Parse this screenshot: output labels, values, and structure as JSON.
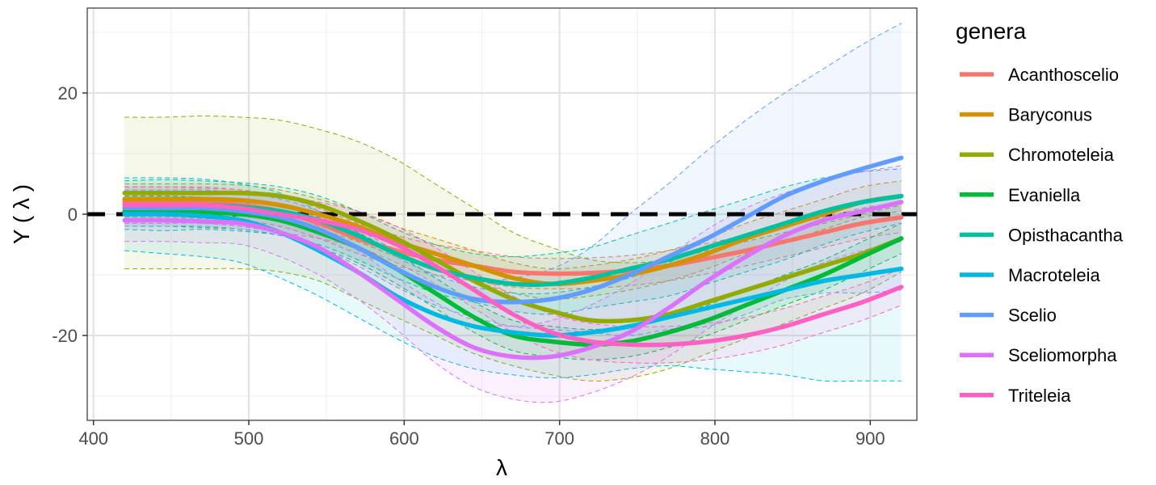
{
  "chart_data": {
    "type": "line",
    "title": "",
    "xlabel": "λ",
    "ylabel": "Y ( λ )",
    "xlim": [
      396,
      930
    ],
    "ylim": [
      -34,
      34
    ],
    "x_ticks": [
      400,
      500,
      600,
      700,
      800,
      900
    ],
    "y_ticks": [
      -20,
      0,
      20
    ],
    "x_tick_labels": [
      "400",
      "500",
      "600",
      "700",
      "800",
      "900"
    ],
    "y_tick_labels": [
      "-20",
      "0",
      "20"
    ],
    "grid": true,
    "reference_line": {
      "y": 0,
      "style": "dashed",
      "color": "#000000"
    },
    "legend": {
      "title": "genera",
      "position": "right"
    },
    "x": [
      420,
      445,
      470,
      495,
      520,
      545,
      570,
      595,
      620,
      645,
      670,
      695,
      720,
      745,
      770,
      795,
      820,
      845,
      870,
      895,
      920
    ],
    "series": [
      {
        "name": "Acanthoscelio",
        "color": "#F8766D",
        "values": [
          2.0,
          2.0,
          1.8,
          1.5,
          0.5,
          -1.5,
          -4.0,
          -6.0,
          -7.5,
          -8.5,
          -9.5,
          -9.8,
          -9.7,
          -9.3,
          -8.5,
          -7.3,
          -6.0,
          -4.5,
          -3.0,
          -1.5,
          -0.5
        ],
        "band": {
          "upper": [
            4.5,
            4.5,
            4.3,
            4.0,
            3.0,
            1.0,
            -1.5,
            -3.5,
            -5.0,
            -6.0,
            -7.0,
            -7.3,
            -7.2,
            -6.8,
            -6.0,
            -4.8,
            -3.5,
            -2.0,
            -0.5,
            1.0,
            2.0
          ],
          "lower": [
            -0.5,
            -0.5,
            -0.7,
            -1.0,
            -2.0,
            -4.0,
            -6.5,
            -8.5,
            -10.0,
            -11.0,
            -12.0,
            -12.3,
            -12.2,
            -11.8,
            -11.0,
            -9.8,
            -8.5,
            -7.0,
            -5.5,
            -4.0,
            -3.0
          ]
        }
      },
      {
        "name": "Baryconus",
        "color": "#D39200",
        "values": [
          2.5,
          2.5,
          2.5,
          2.3,
          1.5,
          0.0,
          -2.0,
          -4.5,
          -6.5,
          -8.5,
          -10.5,
          -11.5,
          -11.0,
          -10.0,
          -8.5,
          -6.5,
          -4.0,
          -2.0,
          0.0,
          2.0,
          3.0
        ],
        "band": {
          "upper": [
            5.0,
            5.0,
            5.0,
            4.8,
            4.0,
            2.5,
            0.5,
            -2.0,
            -4.0,
            -6.0,
            -8.0,
            -9.0,
            -8.5,
            -7.5,
            -6.0,
            -4.0,
            -1.5,
            0.5,
            2.5,
            4.5,
            5.5
          ],
          "lower": [
            0.0,
            0.0,
            0.0,
            -0.2,
            -1.0,
            -2.5,
            -4.5,
            -7.0,
            -9.0,
            -11.0,
            -13.0,
            -14.0,
            -13.5,
            -12.5,
            -11.0,
            -9.0,
            -6.5,
            -4.5,
            -2.5,
            -0.5,
            0.5
          ]
        }
      },
      {
        "name": "Chromoteleia",
        "color": "#93AA00",
        "values": [
          3.5,
          3.5,
          3.5,
          3.5,
          3.0,
          1.5,
          -1.0,
          -4.0,
          -7.5,
          -11.0,
          -14.0,
          -16.0,
          -17.5,
          -17.5,
          -16.5,
          -14.5,
          -12.5,
          -10.5,
          -8.5,
          -6.5,
          -4.0
        ],
        "band": {
          "upper": [
            16.0,
            16.0,
            16.2,
            16.0,
            15.5,
            14.0,
            12.0,
            9.0,
            5.0,
            1.0,
            -3.0,
            -5.5,
            -7.5,
            -8.0,
            -7.5,
            -6.0,
            -4.5,
            -3.0,
            -1.5,
            0.0,
            1.5
          ],
          "lower": [
            -9.0,
            -9.0,
            -9.0,
            -9.0,
            -9.5,
            -11.0,
            -14.0,
            -17.0,
            -20.0,
            -23.0,
            -25.0,
            -26.5,
            -27.5,
            -27.0,
            -25.5,
            -23.0,
            -20.5,
            -18.0,
            -15.5,
            -13.0,
            -9.5
          ]
        }
      },
      {
        "name": "Evaniella",
        "color": "#00BA38",
        "values": [
          0.5,
          0.5,
          0.3,
          0.0,
          -1.0,
          -3.0,
          -5.5,
          -9.0,
          -13.0,
          -17.0,
          -20.0,
          -21.0,
          -21.5,
          -21.0,
          -19.5,
          -17.5,
          -15.0,
          -12.5,
          -10.0,
          -7.0,
          -4.0
        ],
        "band": {
          "upper": [
            3.0,
            3.0,
            2.8,
            2.5,
            1.5,
            -0.5,
            -3.0,
            -6.5,
            -10.5,
            -14.5,
            -17.5,
            -18.5,
            -19.0,
            -18.5,
            -17.0,
            -15.0,
            -12.5,
            -10.0,
            -7.5,
            -4.5,
            -1.5
          ],
          "lower": [
            -2.0,
            -2.0,
            -2.2,
            -2.5,
            -3.5,
            -5.5,
            -8.0,
            -11.5,
            -15.5,
            -19.5,
            -22.5,
            -23.5,
            -24.0,
            -23.5,
            -22.0,
            -20.0,
            -17.5,
            -15.0,
            -12.5,
            -9.5,
            -6.5
          ]
        }
      },
      {
        "name": "Opisthacantha",
        "color": "#00C19F",
        "values": [
          1.5,
          1.5,
          1.5,
          1.2,
          0.5,
          -1.0,
          -3.5,
          -6.5,
          -9.0,
          -10.5,
          -11.5,
          -11.5,
          -10.5,
          -9.0,
          -7.5,
          -5.5,
          -3.5,
          -1.5,
          0.5,
          2.0,
          3.0
        ],
        "band": {
          "upper": [
            5.5,
            5.7,
            5.5,
            5.2,
            4.5,
            3.0,
            0.5,
            -2.5,
            -5.0,
            -6.5,
            -7.0,
            -6.5,
            -5.5,
            -3.5,
            -1.5,
            0.5,
            2.5,
            4.5,
            6.0,
            7.0,
            7.5
          ],
          "lower": [
            -2.5,
            -2.7,
            -2.5,
            -2.8,
            -3.5,
            -5.0,
            -7.5,
            -10.5,
            -13.0,
            -14.5,
            -16.0,
            -16.5,
            -15.5,
            -14.5,
            -13.5,
            -11.5,
            -9.5,
            -7.5,
            -5.0,
            -3.0,
            -1.5
          ]
        }
      },
      {
        "name": "Macroteleia",
        "color": "#00B9E3",
        "values": [
          0.0,
          0.0,
          -0.3,
          -1.0,
          -3.0,
          -6.0,
          -9.5,
          -13.5,
          -16.5,
          -18.5,
          -19.5,
          -20.0,
          -19.5,
          -18.5,
          -17.0,
          -15.5,
          -14.0,
          -12.5,
          -11.0,
          -10.0,
          -9.0
        ],
        "band": {
          "upper": [
            6.0,
            6.0,
            5.8,
            5.0,
            3.5,
            0.5,
            -3.0,
            -7.0,
            -10.0,
            -12.0,
            -13.0,
            -13.0,
            -12.0,
            -10.5,
            -8.0,
            -5.5,
            -3.5,
            -1.5,
            0.5,
            2.0,
            3.0
          ],
          "lower": [
            -6.0,
            -6.5,
            -7.0,
            -8.0,
            -10.5,
            -13.5,
            -17.0,
            -20.5,
            -23.5,
            -25.5,
            -26.5,
            -27.0,
            -26.5,
            -25.5,
            -25.0,
            -25.5,
            -26.0,
            -26.5,
            -27.5,
            -27.5,
            -27.5
          ]
        }
      },
      {
        "name": "Scelio",
        "color": "#619CFF",
        "values": [
          1.0,
          1.0,
          1.0,
          0.5,
          -0.5,
          -2.5,
          -5.5,
          -9.0,
          -12.0,
          -14.0,
          -14.5,
          -14.0,
          -12.5,
          -10.0,
          -7.0,
          -4.0,
          -0.5,
          3.0,
          5.5,
          7.5,
          9.3
        ],
        "band": {
          "upper": [
            4.0,
            4.0,
            4.0,
            3.5,
            2.5,
            0.5,
            -2.5,
            -6.0,
            -9.0,
            -11.0,
            -10.5,
            -9.0,
            -5.5,
            0.0,
            5.0,
            10.5,
            15.5,
            20.0,
            24.0,
            28.0,
            31.5
          ],
          "lower": [
            -2.0,
            -2.0,
            -2.0,
            -2.5,
            -3.5,
            -5.5,
            -8.5,
            -12.0,
            -15.0,
            -17.0,
            -18.5,
            -19.0,
            -19.5,
            -20.0,
            -19.0,
            -18.5,
            -16.5,
            -14.0,
            -13.0,
            -13.0,
            -12.5
          ]
        }
      },
      {
        "name": "Sceliomorpha",
        "color": "#DB72FB",
        "values": [
          -1.0,
          -1.0,
          -1.2,
          -1.5,
          -3.0,
          -5.5,
          -9.5,
          -14.0,
          -18.5,
          -22.0,
          -23.5,
          -23.5,
          -22.0,
          -19.5,
          -15.5,
          -11.0,
          -7.0,
          -3.5,
          -1.0,
          0.5,
          2.0
        ],
        "band": {
          "upper": [
            2.5,
            2.5,
            2.3,
            2.0,
            0.5,
            -2.0,
            -6.0,
            -10.5,
            -14.5,
            -17.5,
            -18.5,
            -17.5,
            -15.0,
            -11.5,
            -7.0,
            -2.5,
            1.0,
            3.5,
            5.5,
            7.0,
            8.0
          ],
          "lower": [
            -4.5,
            -4.5,
            -4.7,
            -5.0,
            -7.0,
            -10.0,
            -14.0,
            -19.0,
            -24.5,
            -28.5,
            -30.5,
            -31.0,
            -29.5,
            -27.0,
            -23.5,
            -19.0,
            -15.0,
            -11.0,
            -8.0,
            -6.0,
            -4.5
          ]
        }
      },
      {
        "name": "Triteleia",
        "color": "#FF61C3",
        "values": [
          1.5,
          1.5,
          1.5,
          1.0,
          0.0,
          -1.0,
          -2.5,
          -5.0,
          -8.5,
          -12.5,
          -16.5,
          -19.5,
          -21.0,
          -21.5,
          -21.5,
          -21.0,
          -20.0,
          -18.5,
          -16.5,
          -14.5,
          -12.0
        ],
        "band": {
          "upper": [
            4.5,
            4.5,
            4.5,
            4.0,
            3.0,
            2.0,
            0.5,
            -2.0,
            -5.5,
            -9.5,
            -13.5,
            -16.5,
            -18.0,
            -18.5,
            -18.5,
            -18.0,
            -17.0,
            -15.5,
            -13.5,
            -11.5,
            -9.0
          ],
          "lower": [
            -1.5,
            -1.5,
            -1.5,
            -2.0,
            -3.0,
            -4.0,
            -5.5,
            -8.0,
            -11.5,
            -15.5,
            -19.5,
            -22.5,
            -24.0,
            -24.5,
            -24.5,
            -24.0,
            -23.0,
            -21.5,
            -19.5,
            -17.5,
            -15.0
          ]
        }
      }
    ]
  }
}
